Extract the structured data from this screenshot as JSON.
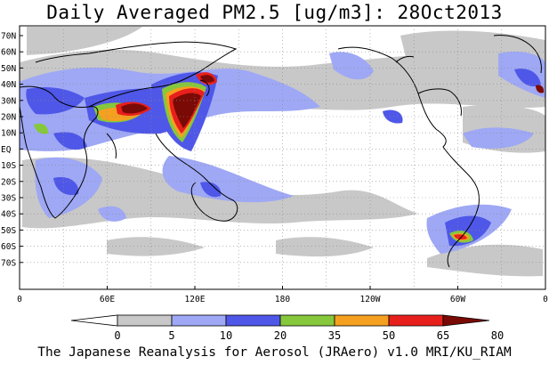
{
  "title": "Daily Averaged PM2.5 [ug/m3]: 28Oct2013",
  "footer": "The Japanese Reanalysis for Aerosol (JRAero) v1.0 MRI/KU_RIAM",
  "lat_ticks": [
    "70N",
    "60N",
    "50N",
    "40N",
    "30N",
    "20N",
    "10N",
    "EQ",
    "10S",
    "20S",
    "30S",
    "40S",
    "50S",
    "60S",
    "70S"
  ],
  "lon_ticks": [
    "0",
    "60E",
    "120E",
    "180",
    "120W",
    "60W",
    "0"
  ],
  "colorbar": {
    "labels": [
      "0",
      "5",
      "10",
      "20",
      "35",
      "50",
      "65",
      "80"
    ],
    "colors": [
      "#ffffff",
      "#c8c8c8",
      "#9ea8f5",
      "#4f57e8",
      "#86c83c",
      "#f5a020",
      "#e8201c",
      "#7a0a05"
    ]
  },
  "map_colors": {
    "light_gray": "#c8c8c8",
    "light_blue": "#9ea8f5",
    "blue": "#4f57e8",
    "green": "#86c83c",
    "orange": "#f5a020",
    "red": "#e8201c",
    "dark_red": "#7a0a05"
  }
}
